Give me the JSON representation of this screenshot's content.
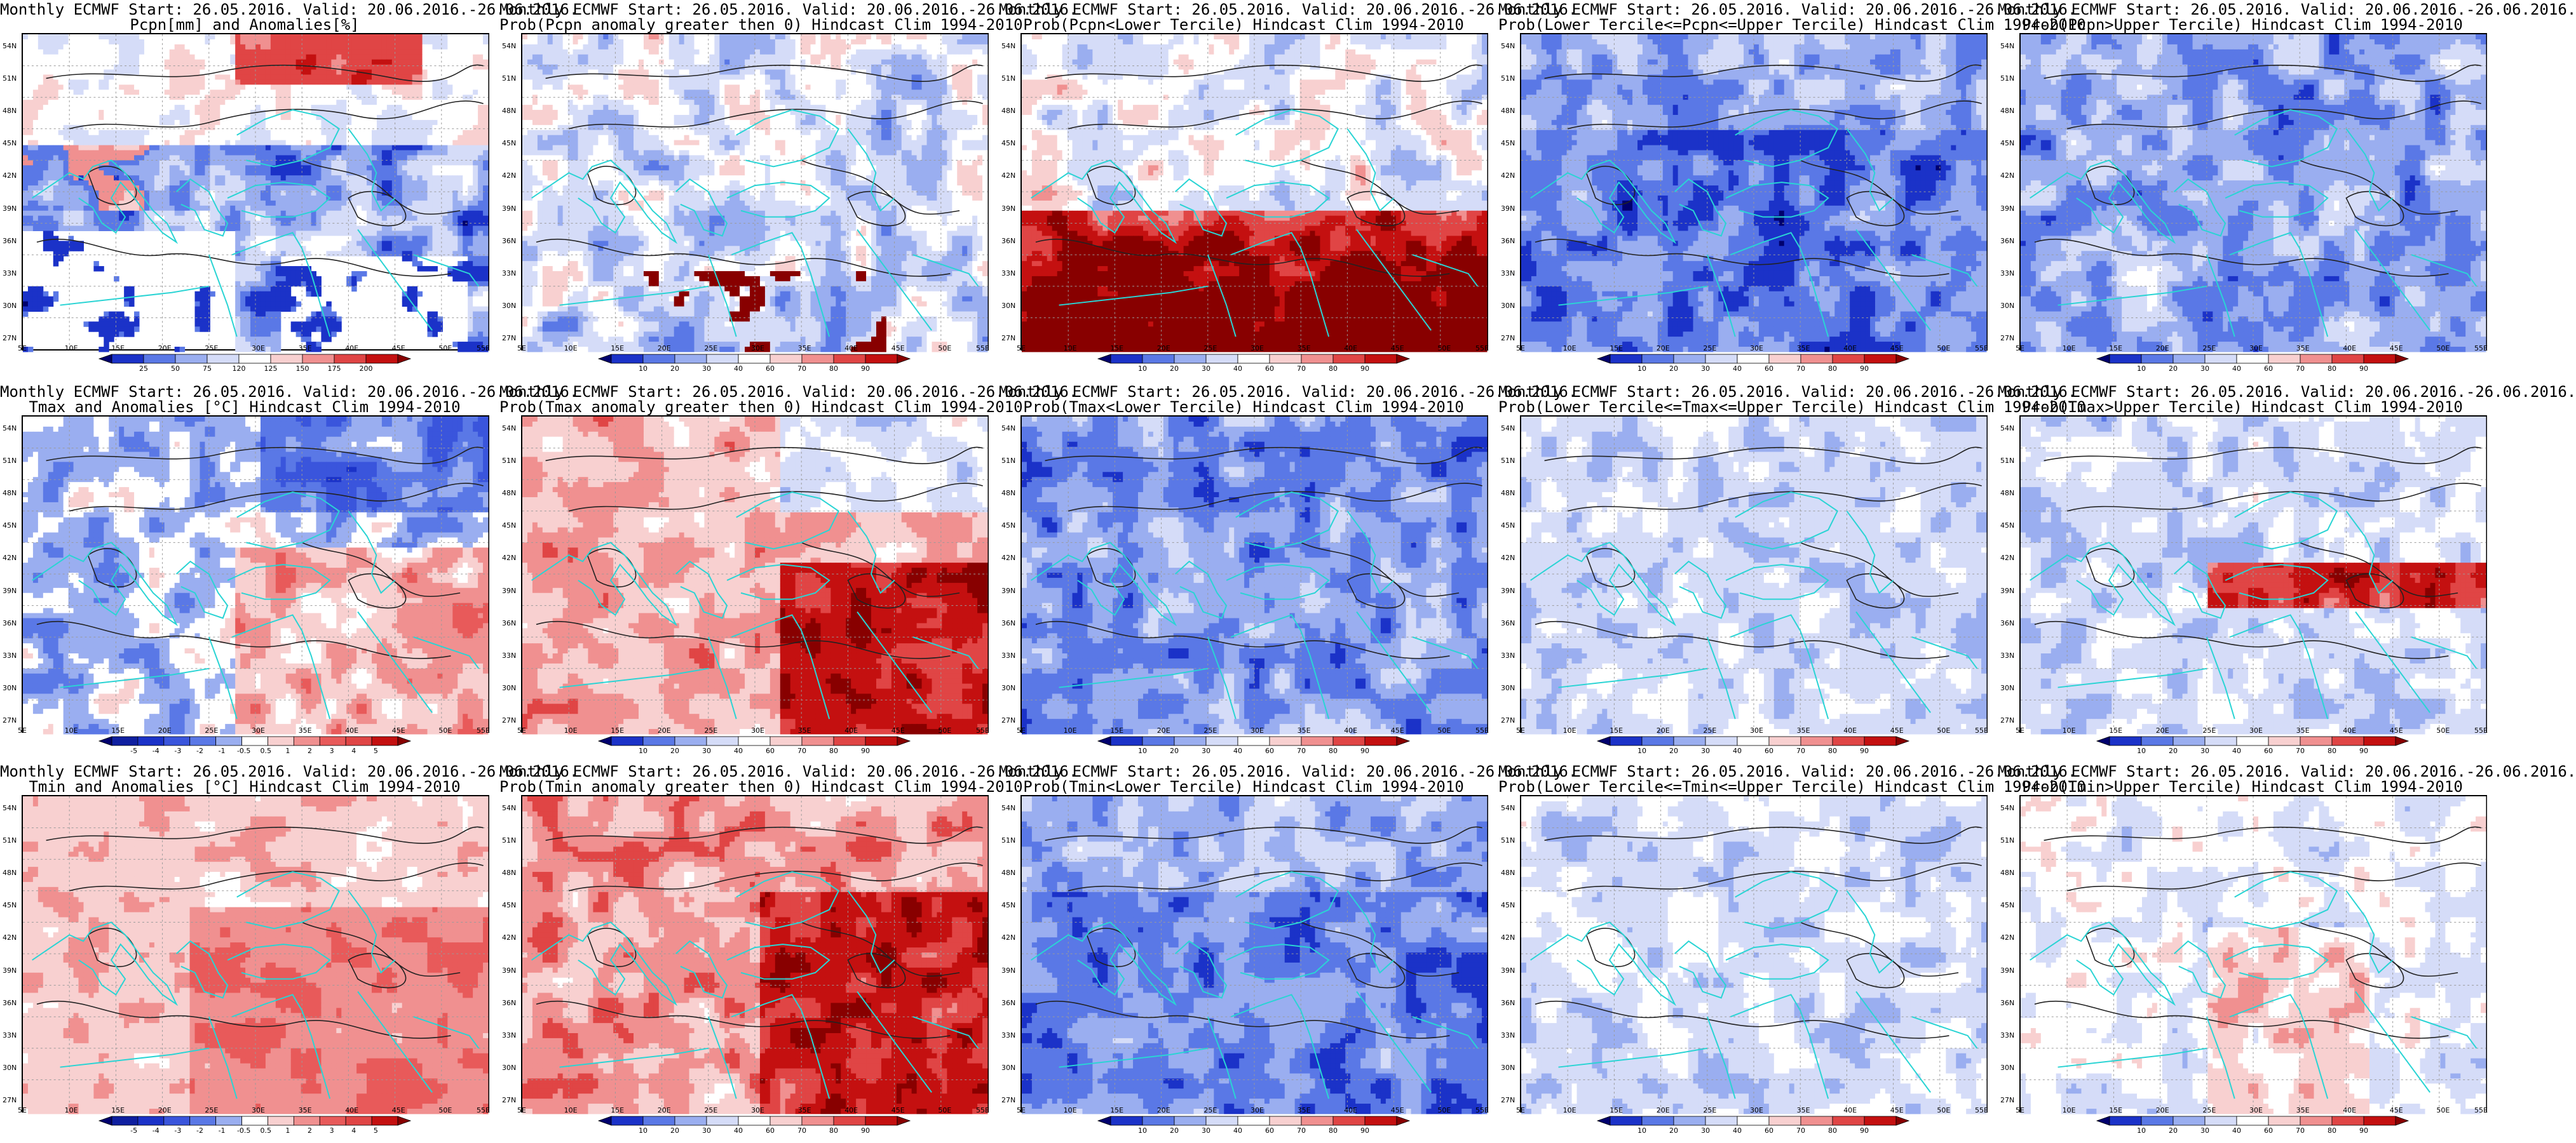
{
  "panels": [
    {
      "title1": "Monthly ECMWF Start: 26.05.2016. Valid: 20.06.2016.-26.06.2016.",
      "title2": "Pcpn[mm] and Anomalies[%]",
      "scale": "precip_anom",
      "mask": true
    },
    {
      "title1": "Monthly ECMWF Start: 26.05.2016. Valid: 20.06.2016.-26.06.2016.",
      "title2": "Prob(Pcpn anomaly greater then 0) Hindcast Clim 1994-2010",
      "scale": "prob",
      "theme": "dry"
    },
    {
      "title1": "Monthly ECMWF Start: 26.05.2016. Valid: 20.06.2016.-26.06.2016.",
      "title2": "Prob(Pcpn<Lower Tercile) Hindcast Clim 1994-2010",
      "scale": "prob",
      "theme": "wet_red"
    },
    {
      "title1": "Monthly ECMWF Start: 26.05.2016. Valid: 20.06.2016.-26.06.2016.",
      "title2": "Prob(Lower Tercile<=Pcpn<=Upper Tercile) Hindcast Clim 1994-2010",
      "scale": "prob",
      "theme": "deep_blue"
    },
    {
      "title1": "Monthly ECMWF Start: 26.05.2016. Valid: 20.06.2016.-26.06.2016.",
      "title2": "Prob(Pcpn>Upper Tercile) Hindcast Clim 1994-2010",
      "scale": "prob",
      "theme": "deep_blue2"
    },
    {
      "title1": "Monthly ECMWF Start: 26.05.2016. Valid: 20.06.2016.-26.06.2016.",
      "title2": "Tmax and Anomalies [°C] Hindcast Clim 1994-2010",
      "scale": "temp_anom",
      "theme": "temp_mix"
    },
    {
      "title1": "Monthly ECMWF Start: 26.05.2016. Valid: 20.06.2016.-26.06.2016.",
      "title2": "Prob(Tmax anomaly greater then 0) Hindcast Clim 1994-2010",
      "scale": "prob",
      "theme": "warm"
    },
    {
      "title1": "Monthly ECMWF Start: 26.05.2016. Valid: 20.06.2016.-26.06.2016.",
      "title2": "Prob(Tmax<Lower Tercile) Hindcast Clim 1994-2010",
      "scale": "prob",
      "theme": "blue"
    },
    {
      "title1": "Monthly ECMWF Start: 26.05.2016. Valid: 20.06.2016.-26.06.2016.",
      "title2": "Prob(Lower Tercile<=Tmax<=Upper Tercile) Hindcast Clim 1994-2010",
      "scale": "prob",
      "theme": "light_blue"
    },
    {
      "title1": "Monthly ECMWF Start: 26.05.2016. Valid: 20.06.2016.-26.06.2016.",
      "title2": "Prob(Tmax>Upper Tercile) Hindcast Clim 1994-2010",
      "scale": "prob",
      "theme": "blue_red"
    },
    {
      "title1": "Monthly ECMWF Start: 26.05.2016. Valid: 20.06.2016.-26.06.2016.",
      "title2": "Tmin and Anomalies [°C] Hindcast Clim 1994-2010",
      "scale": "temp_anom",
      "theme": "temp_warm_light"
    },
    {
      "title1": "Monthly ECMWF Start: 26.05.2016. Valid: 20.06.2016.-26.06.2016.",
      "title2": "Prob(Tmin anomaly greater then 0) Hindcast Clim 1994-2010",
      "scale": "prob",
      "theme": "warm2"
    },
    {
      "title1": "Monthly ECMWF Start: 26.05.2016. Valid: 20.06.2016.-26.06.2016.",
      "title2": "Prob(Tmin<Lower Tercile) Hindcast Clim 1994-2010",
      "scale": "prob",
      "theme": "blue2"
    },
    {
      "title1": "Monthly ECMWF Start: 26.05.2016. Valid: 20.06.2016.-26.06.2016.",
      "title2": "Prob(Lower Tercile<=Tmin<=Upper Tercile) Hindcast Clim 1994-2010",
      "scale": "prob",
      "theme": "light_blue2"
    },
    {
      "title1": "Monthly ECMWF Start: 26.05.2016. Valid: 20.06.2016.-26.06.2016.",
      "title2": "Prob(Tmin>Upper Tercile) Hindcast Clim 1994-2010",
      "scale": "prob",
      "theme": "light_mix"
    }
  ],
  "lat_labels": [
    "54N",
    "51N",
    "48N",
    "45N",
    "42N",
    "39N",
    "36N",
    "33N",
    "30N",
    "27N"
  ],
  "lon_labels": [
    "5E",
    "10E",
    "15E",
    "20E",
    "25E",
    "30E",
    "35E",
    "40E",
    "45E",
    "50E",
    "55E"
  ],
  "scales": {
    "precip_anom": {
      "labels": [
        "25",
        "50",
        "75",
        "120",
        "125",
        "150",
        "175",
        "200"
      ],
      "colors": [
        "#00006e",
        "#1b32c8",
        "#5a78e6",
        "#9aaef0",
        "#d5dcf8",
        "#ffffff",
        "#f8d0d0",
        "#f09090",
        "#e04545",
        "#c41010",
        "#880000"
      ]
    },
    "prob": {
      "labels": [
        "10",
        "20",
        "30",
        "40",
        "60",
        "70",
        "80",
        "90"
      ],
      "colors": [
        "#00006e",
        "#1b32c8",
        "#5a78e6",
        "#9aaef0",
        "#d5dcf8",
        "#ffffff",
        "#f8d0d0",
        "#f09090",
        "#e04545",
        "#c41010",
        "#880000"
      ]
    },
    "temp_anom": {
      "labels": [
        "-5",
        "-4",
        "-3",
        "-2",
        "-1",
        "-0.5",
        "0.5",
        "1",
        "2",
        "3",
        "4",
        "5"
      ],
      "colors": [
        "#00006e",
        "#0f1fa0",
        "#1b32c8",
        "#3a55dc",
        "#5a78e6",
        "#9aaef0",
        "#ffffff",
        "#f8d0d0",
        "#f09090",
        "#e85a5a",
        "#e04545",
        "#c41010",
        "#880000"
      ]
    }
  },
  "colors": {
    "coast": "#2ad4d4",
    "contour": "#222222",
    "frame": "#000000"
  }
}
